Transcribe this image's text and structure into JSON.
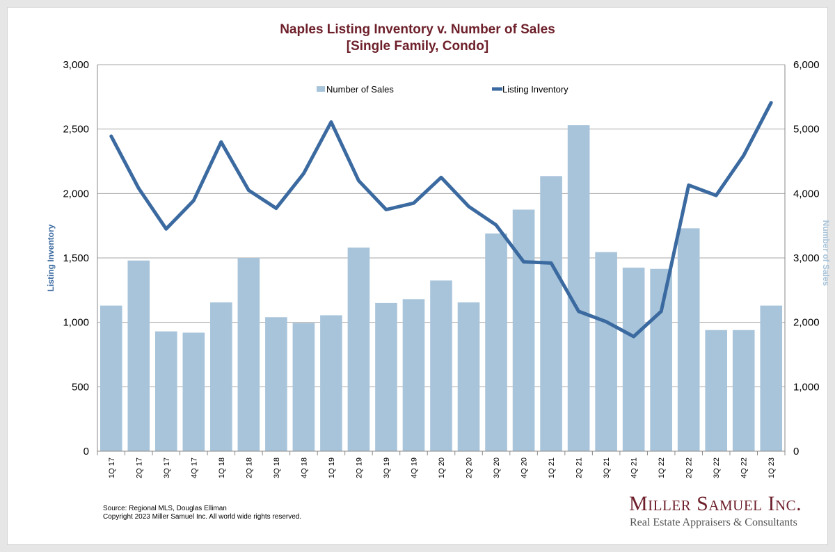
{
  "title_line1": "Naples Listing Inventory v. Number of Sales",
  "title_line2": "[Single Family, Condo]",
  "footer": {
    "source": "Source: Regional MLS, Douglas Elliman",
    "copyright": "Copyright 2023 Miller Samuel Inc.  All world wide rights reserved.",
    "brand": "Miller Samuel Inc.",
    "brand_sub": "Real Estate Appraisers & Consultants"
  },
  "colors": {
    "bar": "#a8c4da",
    "line": "#3b6aa0",
    "grid": "#a6a6a6",
    "title": "#6d1f2a",
    "ylabel_left": "#3b6aa0",
    "ylabel_right": "#a8c4da"
  },
  "chart_data": {
    "type": "bar",
    "categories": [
      "1Q 17",
      "2Q 17",
      "3Q 17",
      "4Q 17",
      "1Q 18",
      "2Q 18",
      "3Q 18",
      "4Q 18",
      "1Q 19",
      "2Q 19",
      "3Q 19",
      "4Q 19",
      "1Q 20",
      "2Q 20",
      "3Q 20",
      "4Q 20",
      "1Q 21",
      "2Q 21",
      "3Q 21",
      "4Q 21",
      "1Q 22",
      "2Q 22",
      "3Q 22",
      "4Q 22",
      "1Q 23"
    ],
    "series": [
      {
        "name": "Number of Sales",
        "type": "bar",
        "axis": "right",
        "values": [
          2260,
          2960,
          1860,
          1840,
          2310,
          3000,
          2080,
          1990,
          2110,
          3160,
          2300,
          2360,
          2650,
          2310,
          3380,
          3750,
          4270,
          5060,
          3090,
          2850,
          2830,
          3460,
          1880,
          1880,
          2260
        ]
      },
      {
        "name": "Listing Inventory",
        "type": "line",
        "axis": "left",
        "values": [
          2445,
          2040,
          1725,
          1945,
          2400,
          2025,
          1885,
          2155,
          2555,
          2100,
          1875,
          1925,
          2125,
          1900,
          1755,
          1470,
          1460,
          1085,
          1005,
          890,
          1085,
          2065,
          1985,
          2295,
          2705
        ]
      }
    ],
    "y_left": {
      "label": "Listing Inventory",
      "lim": [
        0,
        3000
      ],
      "ticks": [
        "0",
        "500",
        "1,000",
        "1,500",
        "2,000",
        "2,500",
        "3,000"
      ]
    },
    "y_right": {
      "label": "Number of Sales",
      "lim": [
        0,
        6000
      ],
      "ticks": [
        "0",
        "1,000",
        "2,000",
        "3,000",
        "4,000",
        "5,000",
        "6,000"
      ]
    },
    "grid": true,
    "legend": "top-center"
  }
}
